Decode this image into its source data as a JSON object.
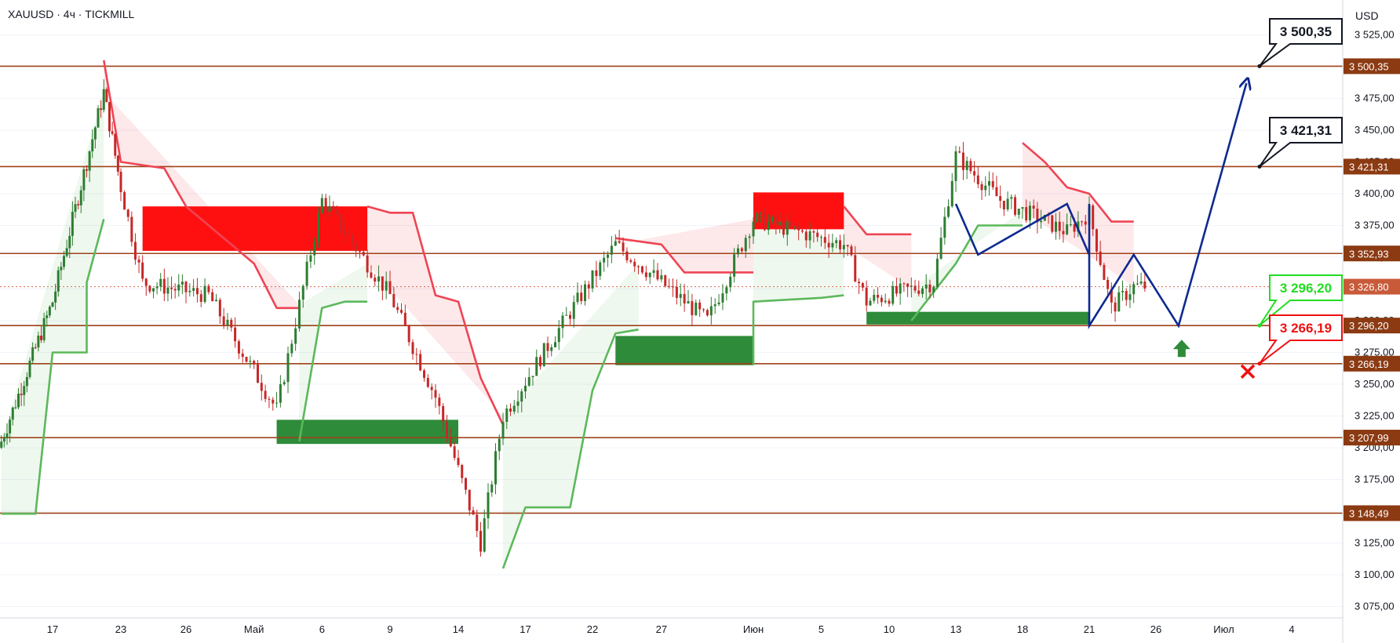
{
  "header": {
    "symbol": "XAUUSD · 4ч · TICKMILL",
    "currency": "USD"
  },
  "colors": {
    "level_line": "#a0421a",
    "price_tag_bg": "#8b3a12",
    "bullish_candle": "#2e7d32",
    "bearish_candle": "#c62828",
    "trail_up": "#5cb85c",
    "trail_down": "#ef4454",
    "supply_zone": "#ff1010",
    "demand_zone": "#2e8b3a",
    "projection": "#0d2a8f",
    "support_callout": "#22dd22",
    "stop_callout": "#ee1111"
  },
  "chart_data": {
    "type": "candlestick",
    "symbol": "XAUUSD",
    "timeframe": "4ч",
    "broker": "TICKMILL",
    "ylim": [
      3067,
      3537
    ],
    "y_ticks": [
      3075,
      3100,
      3125,
      3150,
      3175,
      3200,
      3225,
      3250,
      3275,
      3300,
      3325,
      3350,
      3375,
      3400,
      3425,
      3450,
      3475,
      3500,
      3525
    ],
    "y_tick_labels": [
      "3 075,00",
      "3 100,00",
      "3 125,00",
      "3 150,00",
      "3 175,00",
      "3 200,00",
      "3 225,00",
      "3 250,00",
      "3 275,00",
      "3 300,00",
      "3 325,00",
      "3 350,00",
      "3 375,00",
      "3 400,00",
      "3 425,00",
      "3 450,00",
      "3 475,00",
      "3 500,00",
      "3 525,00"
    ],
    "x_ticks": [
      "17",
      "23",
      "26",
      "Май",
      "6",
      "9",
      "14",
      "17",
      "22",
      "27",
      "Июн",
      "5",
      "10",
      "13",
      "18",
      "21",
      "26",
      "Июл",
      "4"
    ],
    "levels": [
      {
        "value": 3500.35,
        "label": "3 500,35"
      },
      {
        "value": 3421.31,
        "label": "3 421,31"
      },
      {
        "value": 3352.93,
        "label": "3 352,93"
      },
      {
        "value": 3296.2,
        "label": "3 296,20"
      },
      {
        "value": 3266.19,
        "label": "3 266,19"
      },
      {
        "value": 3207.99,
        "label": "3 207,99"
      },
      {
        "value": 3148.49,
        "label": "3 148,49"
      }
    ],
    "current_price": {
      "value": 3326.8,
      "label": "3 326,80"
    },
    "supply_zones": [
      {
        "from": "2025-04-24",
        "to": "2025-05-08",
        "low": 3355,
        "high": 3390
      },
      {
        "from": "2025-06-02",
        "to": "2025-06-06",
        "low": 3372,
        "high": 3401
      }
    ],
    "demand_zones": [
      {
        "from": "2025-05-02",
        "to": "2025-05-14",
        "low": 3203,
        "high": 3222
      },
      {
        "from": "2025-05-23",
        "to": "2025-05-31",
        "low": 3265,
        "high": 3288
      },
      {
        "from": "2025-06-08",
        "to": "2025-06-23",
        "low": 3297,
        "high": 3307
      }
    ],
    "projection_path": [
      {
        "date": "2025-06-23",
        "price": 3296
      },
      {
        "date": "2025-06-25",
        "price": 3352
      },
      {
        "date": "2025-06-27",
        "price": 3296
      },
      {
        "date": "2025-07-02",
        "price": 3487
      }
    ],
    "callouts": [
      {
        "label": "3 500,35",
        "value": 3500.35,
        "kind": "target"
      },
      {
        "label": "3 421,31",
        "value": 3421.31,
        "kind": "target"
      },
      {
        "label": "3 296,20",
        "value": 3296.2,
        "kind": "support"
      },
      {
        "label": "3 266,19",
        "value": 3266.19,
        "kind": "stop"
      }
    ]
  }
}
